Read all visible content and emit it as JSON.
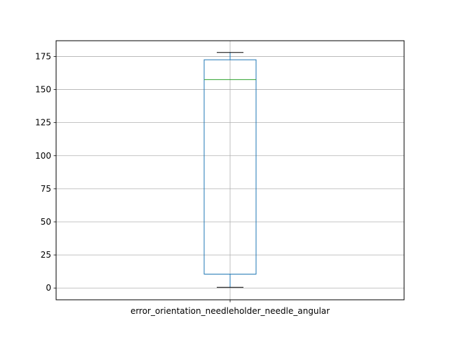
{
  "chart_data": {
    "type": "box",
    "categories": [
      "error_orientation_needleholder_needle_angular"
    ],
    "boxes": [
      {
        "label": "error_orientation_needleholder_needle_angular",
        "whisker_low": 0.5,
        "q1": 10.5,
        "median": 157.5,
        "q3": 172.5,
        "whisker_high": 178.0
      }
    ],
    "ylim": [
      -8.9,
      186.9
    ],
    "yticks": [
      0,
      25,
      50,
      75,
      100,
      125,
      150,
      175
    ],
    "grid": true,
    "title": "",
    "xlabel": "",
    "ylabel": ""
  },
  "colors": {
    "box": "#1f77b4",
    "median": "#2ca02c",
    "whisker": "#000000",
    "grid": "#b0b0b0",
    "axes": "#000000"
  }
}
